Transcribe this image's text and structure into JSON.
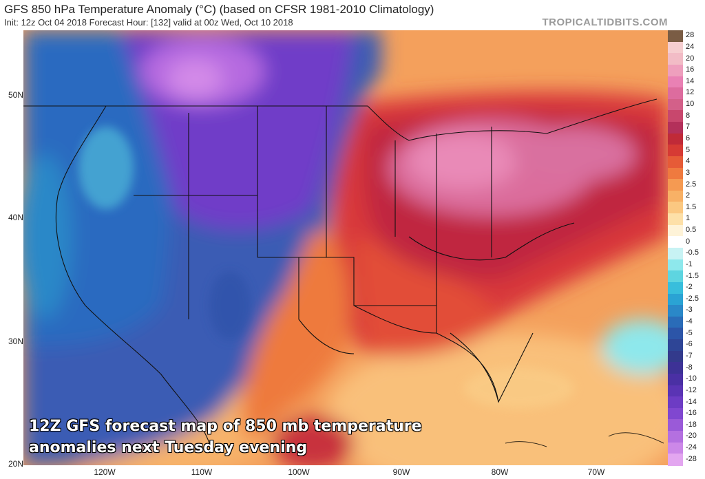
{
  "header": {
    "title": "GFS 850 hPa Temperature Anomaly (°C) (based on CFSR 1981-2010 Climatology)",
    "subtitle": "Init: 12z Oct 04 2018   Forecast Hour: [132]   valid at 00z Wed, Oct 10 2018",
    "brand": "TROPICALTIDBITS.COM"
  },
  "map": {
    "lat_labels": [
      "50N",
      "40N",
      "30N",
      "20N"
    ],
    "lon_labels": [
      "120W",
      "110W",
      "100W",
      "90W",
      "80W",
      "70W"
    ],
    "overlay_text": [
      "12Z GFS forecast map of 850 mb temperature",
      "anomalies next Tuesday evening"
    ]
  },
  "colorbar": {
    "labels": [
      "28",
      "24",
      "20",
      "16",
      "14",
      "12",
      "10",
      "8",
      "7",
      "6",
      "5",
      "4",
      "3",
      "2.5",
      "2",
      "1.5",
      "1",
      "0.5",
      "0",
      "-0.5",
      "-1",
      "-1.5",
      "-2",
      "-2.5",
      "-3",
      "-4",
      "-5",
      "-6",
      "-7",
      "-8",
      "-10",
      "-12",
      "-14",
      "-16",
      "-18",
      "-20",
      "-24",
      "-28"
    ],
    "colors": [
      "#7a5c44",
      "#f6ced0",
      "#f2bcc6",
      "#ee9fbd",
      "#e981b4",
      "#dd6c9e",
      "#d36089",
      "#c8476d",
      "#b3305a",
      "#c02a38",
      "#d63a34",
      "#e65b37",
      "#ef7a3f",
      "#f59a52",
      "#f8b166",
      "#fbc881",
      "#fde0a8",
      "#fef3d8",
      "#ffffff",
      "#c8f3f4",
      "#8ee8ec",
      "#5ed5e0",
      "#38bedc",
      "#2aa3d4",
      "#2a88c8",
      "#2a6cb8",
      "#2c55a8",
      "#2e4596",
      "#333a8c",
      "#3d3296",
      "#4a30a4",
      "#5a34b4",
      "#6d3cc4",
      "#8047d0",
      "#9a5ad8",
      "#b470e0",
      "#cc88e8",
      "#e3a6f0"
    ]
  }
}
